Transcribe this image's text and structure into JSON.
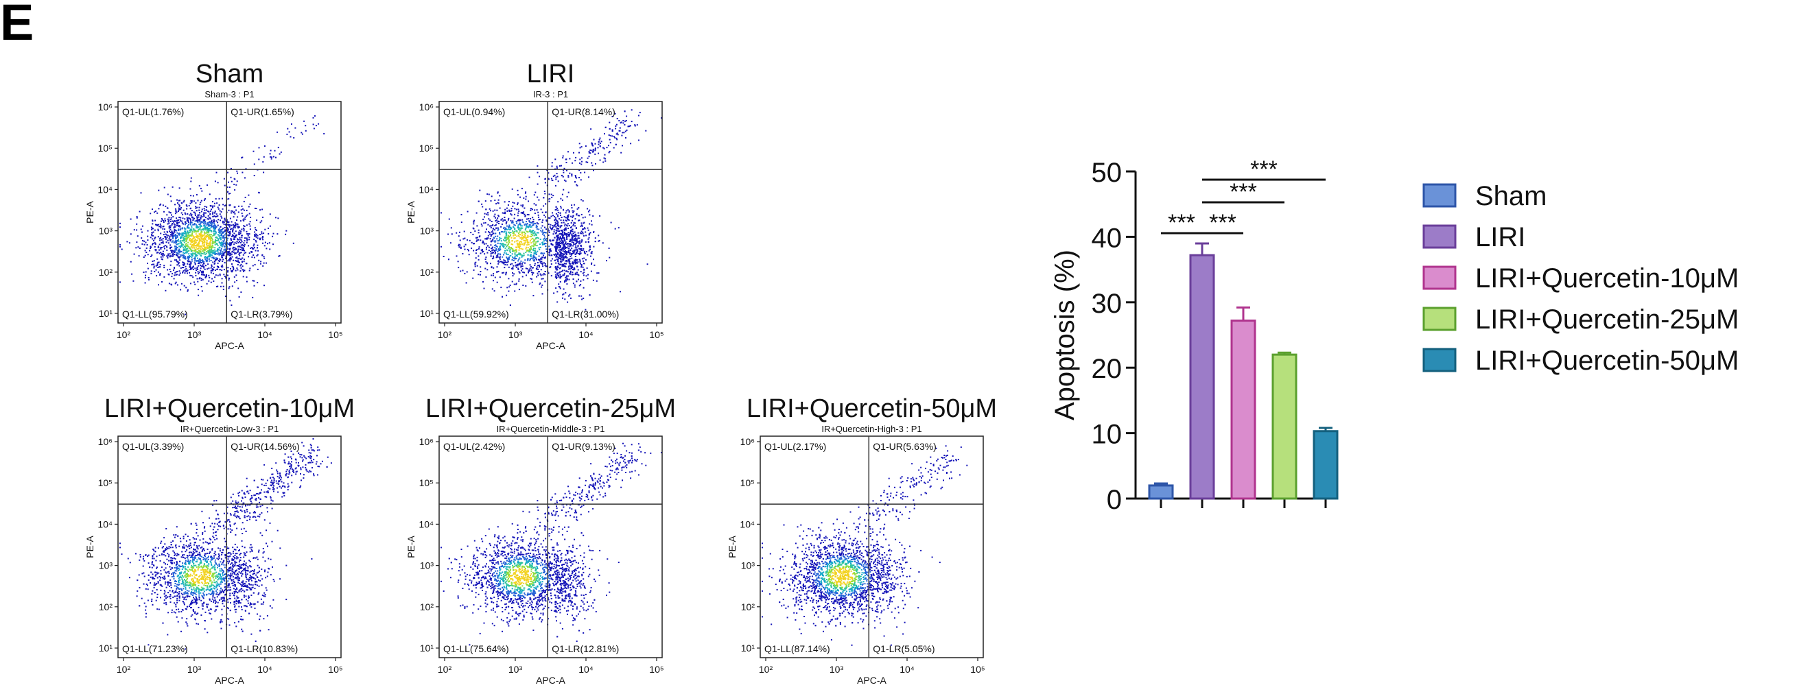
{
  "panel_label": "E",
  "chart_data": [
    {
      "type": "scatter",
      "title": "Sham",
      "subtitle": "Sham-3 : P1",
      "xlabel": "APC-A",
      "ylabel": "PE-A",
      "xticks": [
        "10²",
        "10³",
        "10⁴",
        "10⁵"
      ],
      "yticks": [
        "10¹",
        "10²",
        "10³",
        "10⁴",
        "10⁵",
        "10⁶"
      ],
      "quadrants": {
        "UL": "Q1-UL(1.76%)",
        "UR": "Q1-UR(1.65%)",
        "LL": "Q1-LL(95.79%)",
        "LR": "Q1-LR(3.79%)"
      },
      "values": {
        "UL": 1.76,
        "UR": 1.65,
        "LL": 95.79,
        "LR": 3.79
      }
    },
    {
      "type": "scatter",
      "title": "LIRI",
      "subtitle": "IR-3 : P1",
      "xlabel": "APC-A",
      "ylabel": "PE-A",
      "xticks": [
        "10²",
        "10³",
        "10⁴",
        "10⁵"
      ],
      "yticks": [
        "10¹",
        "10²",
        "10³",
        "10⁴",
        "10⁵",
        "10⁶"
      ],
      "quadrants": {
        "UL": "Q1-UL(0.94%)",
        "UR": "Q1-UR(8.14%)",
        "LL": "Q1-LL(59.92%)",
        "LR": "Q1-LR(31.00%)"
      },
      "values": {
        "UL": 0.94,
        "UR": 8.14,
        "LL": 59.92,
        "LR": 31.0
      }
    },
    {
      "type": "scatter",
      "title": "LIRI+Quercetin-10μM",
      "subtitle": "IR+Quercetin-Low-3 : P1",
      "xlabel": "APC-A",
      "ylabel": "PE-A",
      "xticks": [
        "10²",
        "10³",
        "10⁴",
        "10⁵"
      ],
      "yticks": [
        "10¹",
        "10²",
        "10³",
        "10⁴",
        "10⁵",
        "10⁶"
      ],
      "quadrants": {
        "UL": "Q1-UL(3.39%)",
        "UR": "Q1-UR(14.56%)",
        "LL": "Q1-LL(71.23%)",
        "LR": "Q1-LR(10.83%)"
      },
      "values": {
        "UL": 3.39,
        "UR": 14.56,
        "LL": 71.23,
        "LR": 10.83
      }
    },
    {
      "type": "scatter",
      "title": "LIRI+Quercetin-25μM",
      "subtitle": "IR+Quercetin-Middle-3 : P1",
      "xlabel": "APC-A",
      "ylabel": "PE-A",
      "xticks": [
        "10²",
        "10³",
        "10⁴",
        "10⁵"
      ],
      "yticks": [
        "10¹",
        "10²",
        "10³",
        "10⁴",
        "10⁵",
        "10⁶"
      ],
      "quadrants": {
        "UL": "Q1-UL(2.42%)",
        "UR": "Q1-UR(9.13%)",
        "LL": "Q1-LL(75.64%)",
        "LR": "Q1-LR(12.81%)"
      },
      "values": {
        "UL": 2.42,
        "UR": 9.13,
        "LL": 75.64,
        "LR": 12.81
      }
    },
    {
      "type": "scatter",
      "title": "LIRI+Quercetin-50μM",
      "subtitle": "IR+Quercetin-High-3 : P1",
      "xlabel": "APC-A",
      "ylabel": "PE-A",
      "xticks": [
        "10²",
        "10³",
        "10⁴",
        "10⁵"
      ],
      "yticks": [
        "10¹",
        "10²",
        "10³",
        "10⁴",
        "10⁵",
        "10⁶"
      ],
      "quadrants": {
        "UL": "Q1-UL(2.17%)",
        "UR": "Q1-UR(5.63%)",
        "LL": "Q1-LL(87.14%)",
        "LR": "Q1-LR(5.05%)"
      },
      "values": {
        "UL": 2.17,
        "UR": 5.63,
        "LL": 87.14,
        "LR": 5.05
      }
    },
    {
      "type": "bar",
      "ylabel": "Apoptosis (%)",
      "ylim": [
        0,
        50
      ],
      "yticks": [
        0,
        10,
        20,
        30,
        40,
        50
      ],
      "categories": [
        "Sham",
        "LIRI",
        "LIRI+Quercetin-10μM",
        "LIRI+Quercetin-25μM",
        "LIRI+Quercetin-50μM"
      ],
      "values": [
        2.0,
        37.2,
        27.2,
        22.0,
        10.3
      ],
      "errors": [
        0.3,
        1.8,
        2.0,
        0.3,
        0.5
      ],
      "fill_colors": [
        "#6a92d8",
        "#9c7cc8",
        "#da8ccd",
        "#b6e07c",
        "#2a8cb4"
      ],
      "edge_colors": [
        "#2d55a8",
        "#6a3e9a",
        "#b0348e",
        "#5ba02e",
        "#14607e"
      ],
      "significance": [
        {
          "from": 0,
          "to": 1,
          "label": "***"
        },
        {
          "from": 1,
          "to": 2,
          "label": "***"
        },
        {
          "from": 1,
          "to": 3,
          "label": "***"
        },
        {
          "from": 1,
          "to": 4,
          "label": "***"
        }
      ],
      "legend": [
        "Sham",
        "LIRI",
        "LIRI+Quercetin-10μM",
        "LIRI+Quercetin-25μM",
        "LIRI+Quercetin-50μM"
      ]
    }
  ]
}
